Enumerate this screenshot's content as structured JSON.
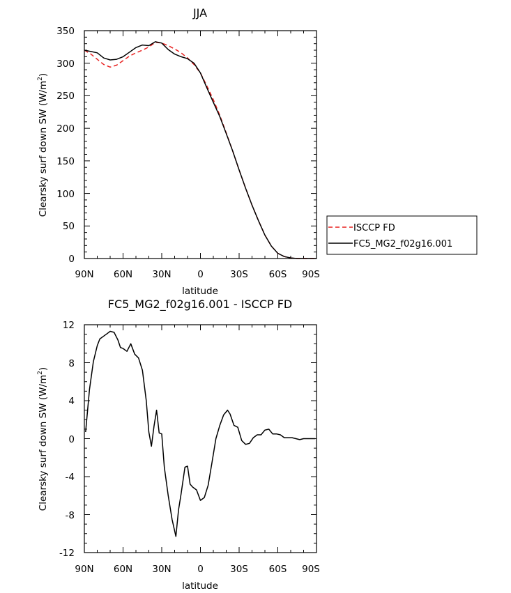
{
  "chart_data": [
    {
      "type": "line",
      "title": "JJA",
      "xlabel": "latitude",
      "ylabel": "Clearsky surf down SW (W/m",
      "ylabel_sup": "2",
      "ylabel_end": ")",
      "x_ticks": [
        "90N",
        "60N",
        "30N",
        "0",
        "30S",
        "60S",
        "90S"
      ],
      "y_ticks": [
        "0",
        "50",
        "100",
        "150",
        "200",
        "250",
        "300",
        "350"
      ],
      "xlim": [
        90,
        -90
      ],
      "ylim": [
        0,
        350
      ],
      "legend_position": "right",
      "series": [
        {
          "name": "ISCCP FD",
          "color": "#e8201f",
          "dash": "dashed",
          "x": [
            90,
            85,
            80,
            75,
            70,
            65,
            60,
            55,
            50,
            45,
            40,
            35,
            30,
            25,
            20,
            15,
            10,
            5,
            0,
            -5,
            -10,
            -15,
            -20,
            -25,
            -30,
            -35,
            -40,
            -45,
            -50,
            -55,
            -60,
            -65,
            -70,
            -75,
            -80,
            -85,
            -90
          ],
          "y": [
            320,
            314,
            306,
            298,
            294,
            297,
            304,
            311,
            316,
            320,
            325,
            332,
            331,
            327,
            322,
            316,
            308,
            298,
            285,
            265,
            244,
            220,
            193,
            165,
            136,
            108,
            82,
            58,
            36,
            19,
            8,
            3,
            1,
            0,
            0,
            0,
            0
          ]
        },
        {
          "name": "FC5_MG2_f02g16.001",
          "color": "#000000",
          "dash": "solid",
          "x": [
            90,
            85,
            80,
            75,
            70,
            65,
            60,
            55,
            50,
            45,
            40,
            35,
            30,
            25,
            20,
            15,
            10,
            5,
            0,
            -5,
            -10,
            -15,
            -20,
            -25,
            -30,
            -35,
            -40,
            -45,
            -50,
            -55,
            -60,
            -65,
            -70,
            -75,
            -80,
            -85,
            -90
          ],
          "y": [
            320,
            318,
            316,
            308,
            305,
            306,
            310,
            317,
            324,
            328,
            327,
            333,
            331,
            321,
            314,
            310,
            307,
            300,
            285,
            262,
            240,
            218,
            192,
            165,
            136,
            108,
            82,
            58,
            36,
            19,
            8,
            3,
            1,
            0,
            0,
            0,
            0
          ]
        }
      ]
    },
    {
      "type": "line",
      "title": "FC5_MG2_f02g16.001 - ISCCP FD",
      "xlabel": "latitude",
      "ylabel": "Clearsky surf down SW (W/m",
      "ylabel_sup": "2",
      "ylabel_end": ")",
      "x_ticks": [
        "90N",
        "60N",
        "30N",
        "0",
        "30S",
        "60S",
        "90S"
      ],
      "y_ticks": [
        "-12",
        "-8",
        "-4",
        "0",
        "4",
        "8",
        "12"
      ],
      "xlim": [
        90,
        -90
      ],
      "ylim": [
        -12,
        12
      ],
      "series": [
        {
          "color": "#000000",
          "dash": "solid",
          "x": [
            89,
            86,
            83,
            80,
            78,
            75,
            72,
            70,
            67,
            64,
            62,
            60,
            57,
            54,
            51,
            48,
            45,
            42,
            40,
            38,
            36,
            34,
            32,
            30,
            28,
            25,
            22,
            19,
            17,
            15,
            12,
            10,
            8,
            6,
            3,
            0,
            -3,
            -6,
            -9,
            -12,
            -15,
            -18,
            -21,
            -23,
            -26,
            -29,
            -32,
            -35,
            -38,
            -41,
            -44,
            -47,
            -50,
            -53,
            -56,
            -59,
            -62,
            -65,
            -68,
            -71,
            -74,
            -77,
            -80,
            -83,
            -86,
            -89
          ],
          "y": [
            0.7,
            5.2,
            8.1,
            9.8,
            10.5,
            10.8,
            11.1,
            11.3,
            11.2,
            10.4,
            9.6,
            9.5,
            9.2,
            10.0,
            8.9,
            8.5,
            7.2,
            4.0,
            0.7,
            -0.8,
            1.3,
            3.0,
            0.6,
            0.5,
            -3.0,
            -6.0,
            -8.5,
            -10.3,
            -7.5,
            -5.8,
            -3.0,
            -2.9,
            -4.8,
            -5.1,
            -5.4,
            -6.5,
            -6.2,
            -4.9,
            -2.5,
            0.0,
            1.4,
            2.5,
            3.0,
            2.6,
            1.4,
            1.2,
            -0.2,
            -0.6,
            -0.5,
            0.1,
            0.4,
            0.4,
            0.9,
            1.0,
            0.5,
            0.5,
            0.4,
            0.1,
            0.1,
            0.1,
            0.0,
            -0.1,
            0.0,
            0.0,
            0.0,
            0.0
          ]
        }
      ]
    }
  ]
}
